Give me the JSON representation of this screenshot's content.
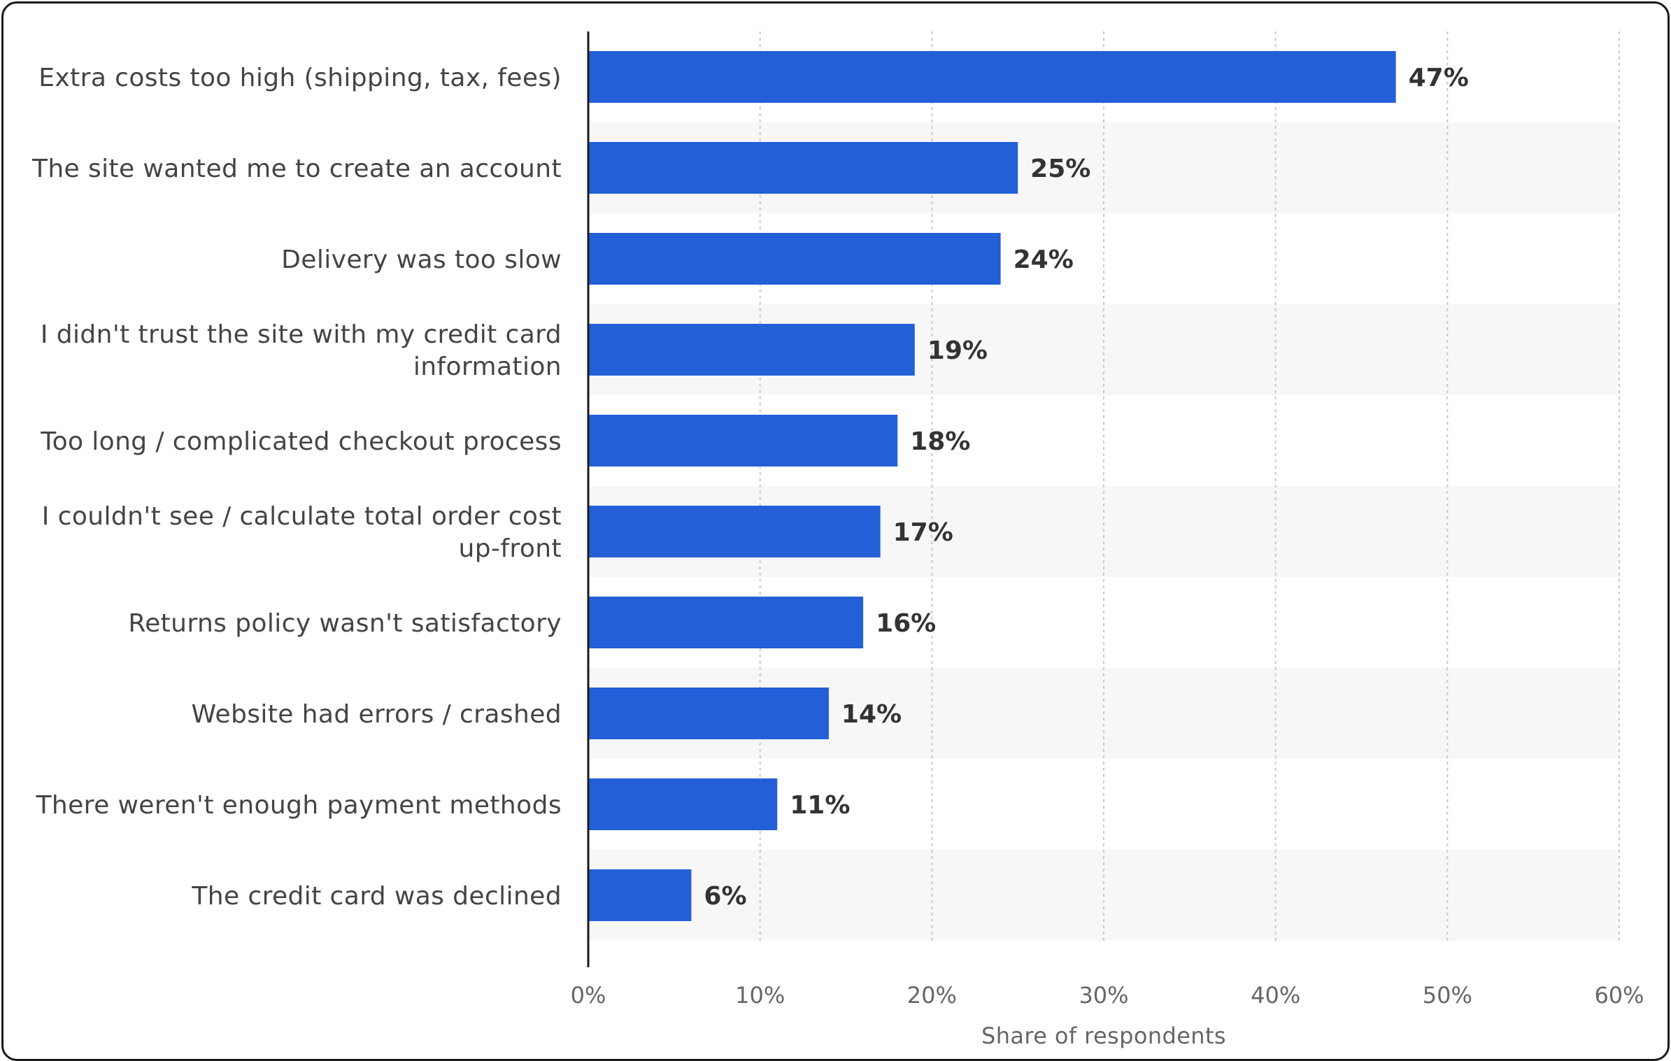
{
  "chart_data": {
    "type": "bar",
    "orientation": "horizontal",
    "categories": [
      [
        "Extra costs too high (shipping, tax, fees)"
      ],
      [
        "The site wanted me to create an account"
      ],
      [
        "Delivery was too slow"
      ],
      [
        "I didn't trust the site with my credit card",
        "information"
      ],
      [
        "Too long / complicated checkout process"
      ],
      [
        "I couldn't see / calculate total order cost",
        "up-front"
      ],
      [
        "Returns policy wasn't satisfactory"
      ],
      [
        "Website had errors / crashed"
      ],
      [
        "There weren't enough payment methods"
      ],
      [
        "The credit card was declined"
      ]
    ],
    "values": [
      47,
      25,
      24,
      19,
      18,
      17,
      16,
      14,
      11,
      6
    ],
    "value_labels": [
      "47%",
      "25%",
      "24%",
      "19%",
      "18%",
      "17%",
      "16%",
      "14%",
      "11%",
      "6%"
    ],
    "xlabel": "Share of respondents",
    "ylabel": "",
    "xlim": [
      0,
      60
    ],
    "x_ticks": [
      0,
      10,
      20,
      30,
      40,
      50,
      60
    ],
    "x_tick_labels": [
      "0%",
      "10%",
      "20%",
      "30%",
      "40%",
      "50%",
      "60%"
    ],
    "grid": true,
    "legend": "none",
    "colors": {
      "bar": "#2360d7",
      "row_band": "#f7f7f7",
      "grid": "#c8c8c8",
      "axis": "#1a1a1a"
    }
  }
}
